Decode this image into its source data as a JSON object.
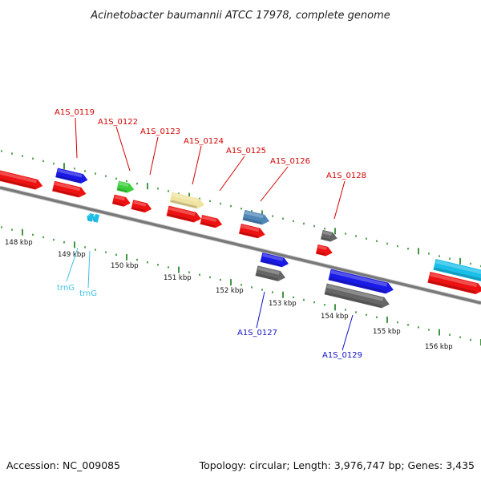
{
  "title": "Acinetobacter baumannii ATCC 17978, complete genome",
  "footer": {
    "accession": "Accession: NC_009085",
    "summary": "Topology: circular; Length: 3,976,747 bp; Genes: 3,435"
  },
  "colors": {
    "backbone": "#7a7a7a",
    "ticks": "#2e8b2e",
    "red": "#ee1111",
    "blue": "#1a1ae6",
    "green": "#3ccf3c",
    "khaki": "#efe3a0",
    "steelblue": "#4f86b8",
    "gray": "#666666",
    "cyan": "#19bfe8",
    "label_red": "#d40000",
    "label_blue": "#1010c8",
    "label_cyan": "#3ec1e6"
  },
  "kbp_labels": [
    "148 kbp",
    "149 kbp",
    "150 kbp",
    "151 kbp",
    "152 kbp",
    "153 kbp",
    "154 kbp",
    "155 kbp",
    "156 kbp"
  ],
  "labels": {
    "A1S_0119": "A1S_0119",
    "A1S_0122": "A1S_0122",
    "A1S_0123": "A1S_0123",
    "A1S_0124": "A1S_0124",
    "A1S_0125": "A1S_0125",
    "A1S_0126": "A1S_0126",
    "A1S_0128": "A1S_0128",
    "A1S_0127": "A1S_0127",
    "A1S_0129": "A1S_0129",
    "trnG_1": "trnG",
    "trnG_2": "trnG"
  }
}
